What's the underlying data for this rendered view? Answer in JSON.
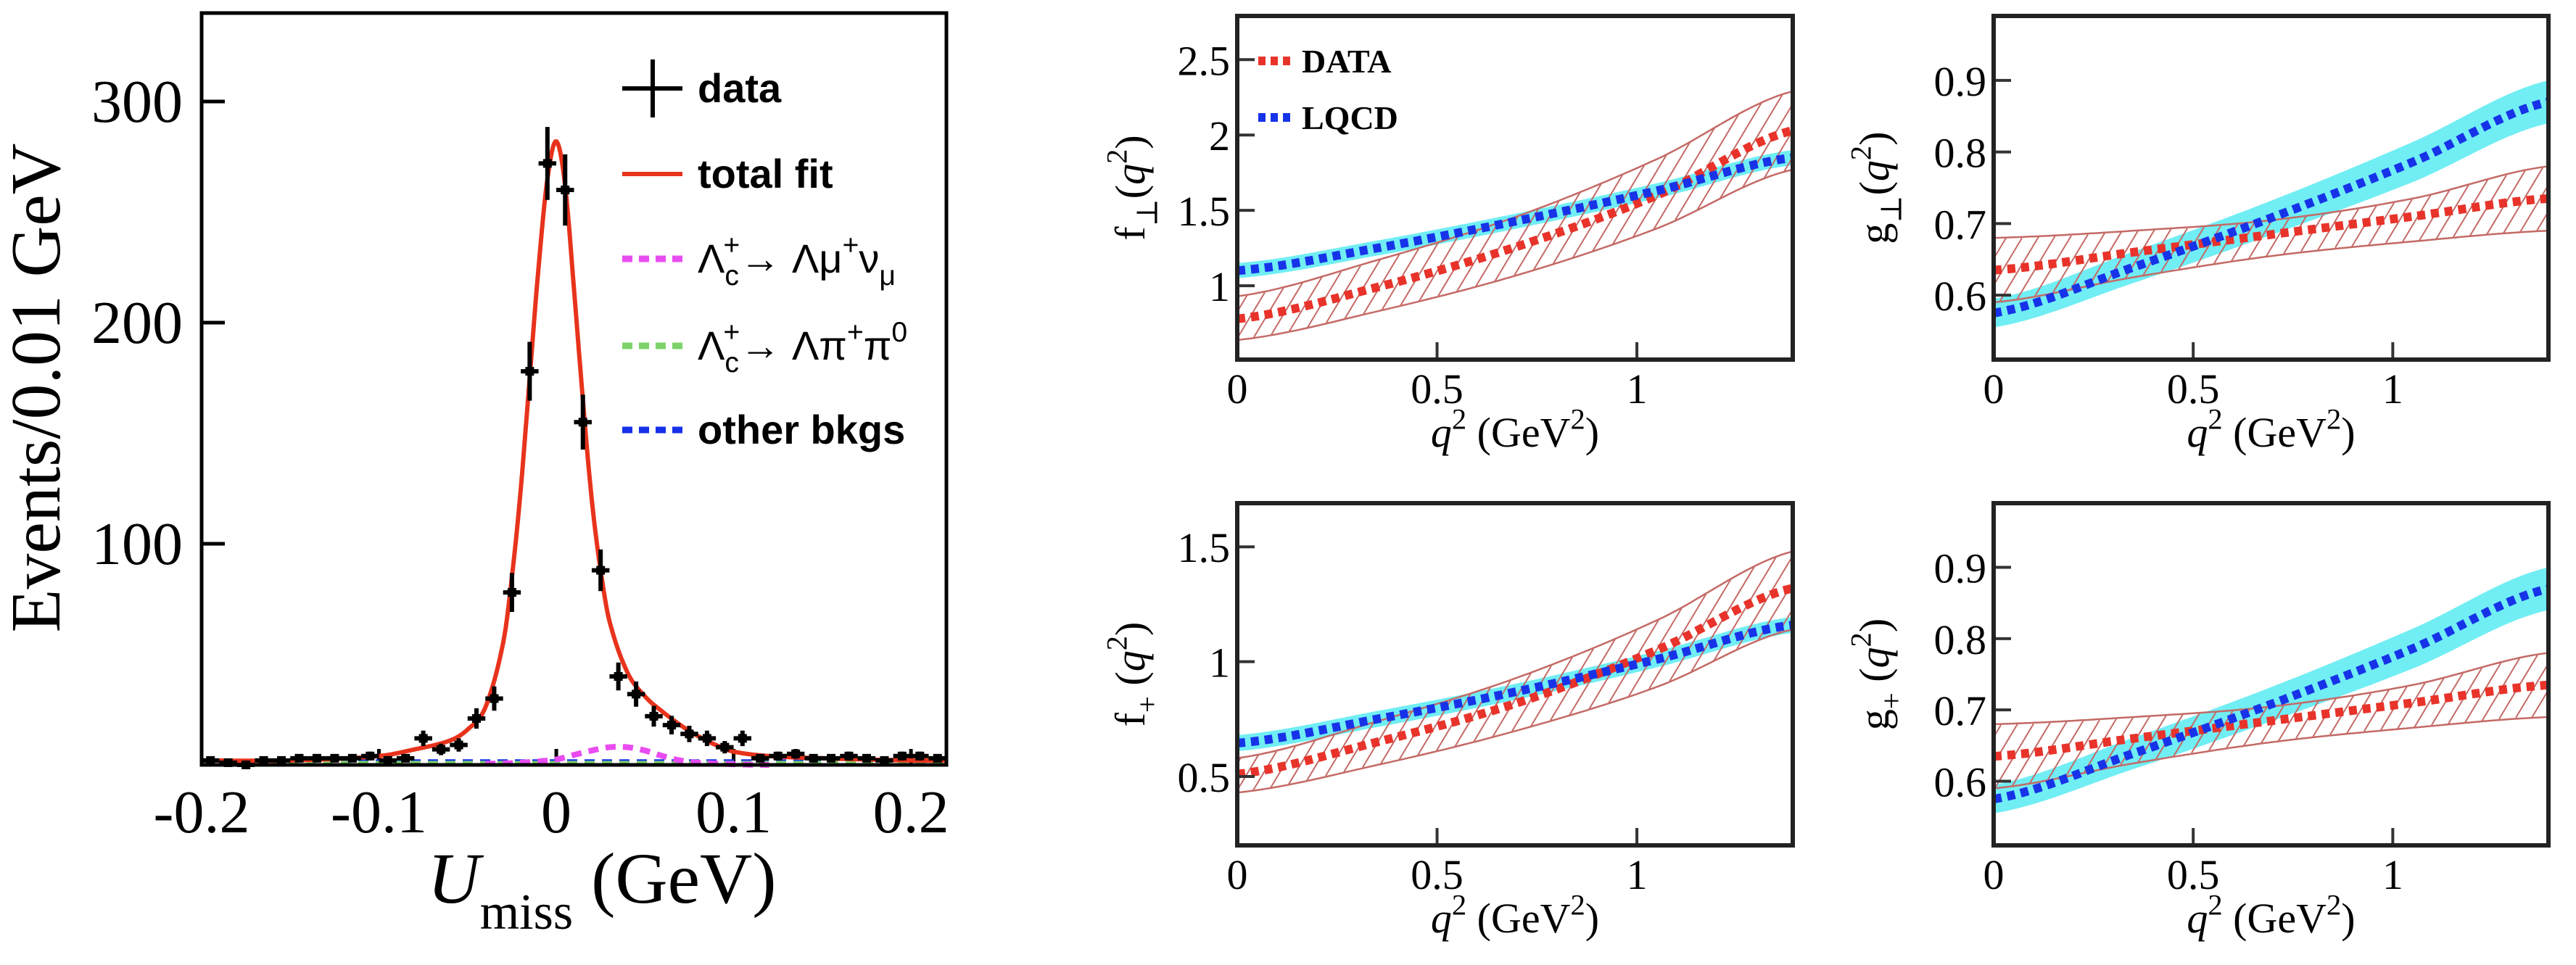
{
  "colors": {
    "data_points": "#000000",
    "total_fit": "#e8331c",
    "signal_mu": "#e84cf0",
    "bkg_pipi0": "#7cd36a",
    "other_bkgs": "#1530e8",
    "form_factor_data": "#e8332a",
    "form_factor_data_band": "#c46a66",
    "lqcd": "#1733e8",
    "lqcd_band": "#70eef4"
  },
  "chart_data": [
    {
      "type": "scatter+line",
      "xlabel": {
        "parts": [
          {
            "t": "U",
            "i": true
          },
          {
            "t": "miss",
            "s": "sub"
          },
          {
            "t": " (GeV)"
          }
        ]
      },
      "ylabel": {
        "parts": [
          {
            "t": "Events/0.01 GeV"
          }
        ]
      },
      "xlim": [
        -0.2,
        0.22
      ],
      "ylim": [
        0,
        340
      ],
      "xticks": [
        -0.2,
        -0.1,
        0,
        0.1,
        0.2
      ],
      "xtick_labels": [
        "-0.2",
        "-0.1",
        "0",
        "0.1",
        "0.2"
      ],
      "yticks": [
        100,
        200,
        300
      ],
      "ytick_labels": [
        "100",
        "200",
        "300"
      ],
      "grid": false,
      "legend": {
        "placement": "top-right",
        "entries": [
          {
            "symbol": "cross",
            "color": "#000000",
            "parts": [
              {
                "t": "data",
                "b": true
              }
            ]
          },
          {
            "symbol": "line",
            "color": "#e8331c",
            "parts": [
              {
                "t": "total fit",
                "b": true
              }
            ]
          },
          {
            "symbol": "dashed",
            "color": "#e84cf0",
            "parts": [
              {
                "t": "Λ"
              },
              {
                "t": "c",
                "s": "sub"
              },
              {
                "t": "+",
                "s": "sup",
                "stack": true
              },
              {
                "t": "→  Λμ"
              },
              {
                "t": "+",
                "s": "sup"
              },
              {
                "t": "ν"
              },
              {
                "t": "μ",
                "s": "sub"
              }
            ]
          },
          {
            "symbol": "dashed",
            "color": "#7cd36a",
            "parts": [
              {
                "t": "Λ"
              },
              {
                "t": "c",
                "s": "sub"
              },
              {
                "t": "+",
                "s": "sup",
                "stack": true
              },
              {
                "t": "→  Λπ"
              },
              {
                "t": "+",
                "s": "sup"
              },
              {
                "t": "π"
              },
              {
                "t": "0",
                "s": "sup"
              }
            ]
          },
          {
            "symbol": "dashed",
            "color": "#1530e8",
            "parts": [
              {
                "t": "other bkgs",
                "b": true
              }
            ]
          }
        ]
      },
      "series": [
        {
          "name": "data",
          "style": "points",
          "color": "#000000",
          "bin_width": 0.01,
          "x": [
            -0.195,
            -0.185,
            -0.175,
            -0.165,
            -0.155,
            -0.145,
            -0.135,
            -0.125,
            -0.115,
            -0.105,
            -0.095,
            -0.085,
            -0.075,
            -0.065,
            -0.055,
            -0.045,
            -0.035,
            -0.025,
            -0.015,
            -0.005,
            0.005,
            0.015,
            0.025,
            0.035,
            0.045,
            0.055,
            0.065,
            0.075,
            0.085,
            0.095,
            0.105,
            0.115,
            0.125,
            0.135,
            0.145,
            0.155,
            0.165,
            0.175,
            0.185,
            0.195,
            0.205,
            0.215
          ],
          "y": [
            2,
            1,
            0,
            2,
            2,
            3,
            3,
            3,
            3,
            4,
            2,
            3,
            12,
            7,
            9,
            21,
            30,
            78,
            178,
            272,
            260,
            155,
            88,
            40,
            32,
            22,
            18,
            14,
            12,
            8,
            12,
            3,
            4,
            5,
            3,
            3,
            4,
            3,
            2,
            4,
            4,
            3
          ],
          "yerr": [
            1.4,
            1,
            1,
            1.4,
            1.4,
            1.7,
            1.7,
            1.7,
            1.7,
            2,
            1.4,
            1.7,
            3.5,
            2.6,
            3,
            4.6,
            5.5,
            8.8,
            13.3,
            16.5,
            16.1,
            12.4,
            9.4,
            6.3,
            5.7,
            4.7,
            4.2,
            3.7,
            3.5,
            2.8,
            3.5,
            1.7,
            2,
            2.2,
            1.7,
            1.7,
            2,
            1.7,
            1.4,
            2,
            2,
            1.7
          ]
        },
        {
          "name": "total fit",
          "style": "solid",
          "color": "#e8331c",
          "x": [
            -0.2,
            -0.15,
            -0.1,
            -0.08,
            -0.06,
            -0.05,
            -0.04,
            -0.03,
            -0.025,
            -0.02,
            -0.015,
            -0.01,
            -0.005,
            0,
            0.005,
            0.01,
            0.015,
            0.02,
            0.025,
            0.03,
            0.04,
            0.05,
            0.06,
            0.07,
            0.08,
            0.09,
            0.1,
            0.12,
            0.15,
            0.2,
            0.22
          ],
          "y": [
            2,
            2,
            4,
            7,
            11,
            16,
            26,
            55,
            85,
            125,
            175,
            225,
            265,
            282,
            262,
            215,
            165,
            120,
            88,
            65,
            42,
            31,
            24,
            18,
            13,
            9,
            6,
            4,
            3,
            2,
            2
          ]
        },
        {
          "name": "Λc+→ Λμ+νμ",
          "style": "dashed",
          "color": "#e84cf0",
          "x": [
            -0.04,
            -0.02,
            0,
            0.01,
            0.02,
            0.03,
            0.04,
            0.05,
            0.06,
            0.07,
            0.08,
            0.1,
            0.12
          ],
          "y": [
            0.5,
            1,
            2.5,
            4.5,
            6.5,
            8,
            8,
            6.5,
            4,
            2,
            1,
            0.3,
            0
          ]
        },
        {
          "name": "Λc+→ Λπ+π0",
          "style": "dashed",
          "color": "#7cd36a",
          "x": [
            -0.2,
            0.22
          ],
          "y": [
            0.5,
            0.5
          ]
        },
        {
          "name": "other bkgs",
          "style": "dashed",
          "color": "#1530e8",
          "x": [
            -0.2,
            0.22
          ],
          "y": [
            1.2,
            1.2
          ]
        }
      ]
    },
    {
      "type": "line",
      "ylabel": {
        "parts": [
          {
            "t": "f"
          },
          {
            "t": "⊥",
            "s": "sub"
          },
          {
            "t": "("
          },
          {
            "t": "q",
            "i": true
          },
          {
            "t": "2",
            "s": "sup"
          },
          {
            "t": ")"
          }
        ]
      },
      "xlabel": {
        "parts": [
          {
            "t": "q",
            "i": true
          },
          {
            "t": "2",
            "s": "sup"
          },
          {
            "t": " (GeV"
          },
          {
            "t": "2",
            "s": "sup"
          },
          {
            "t": ")"
          }
        ]
      },
      "xlim": [
        0,
        1.39
      ],
      "ylim": [
        0.51,
        2.79
      ],
      "xticks": [
        0,
        0.5,
        1
      ],
      "xtick_labels": [
        "0",
        "0.5",
        "1"
      ],
      "yticks": [
        1,
        1.5,
        2,
        2.5
      ],
      "ytick_labels": [
        "1",
        "1.5",
        "2",
        "2.5"
      ],
      "grid": false,
      "legend": {
        "placement": "top-left",
        "entries": [
          {
            "symbol": "dotted",
            "color": "#e8332a",
            "label": "DATA"
          },
          {
            "symbol": "dotted",
            "color": "#1733e8",
            "label": "LQCD"
          }
        ]
      },
      "q2": [
        0,
        0.35,
        0.7,
        1.05,
        1.39
      ],
      "series": [
        {
          "name": "DATA",
          "central": [
            0.78,
            0.99,
            1.26,
            1.6,
            2.03
          ],
          "band_upper": [
            0.93,
            1.17,
            1.46,
            1.84,
            2.29
          ],
          "band_lower": [
            0.64,
            0.83,
            1.07,
            1.38,
            1.77
          ],
          "band_style": "hatched"
        },
        {
          "name": "LQCD",
          "central": [
            1.1,
            1.25,
            1.43,
            1.63,
            1.85
          ],
          "band_upper": [
            1.15,
            1.3,
            1.48,
            1.68,
            1.9
          ],
          "band_lower": [
            1.05,
            1.2,
            1.38,
            1.58,
            1.8
          ],
          "band_style": "filled"
        }
      ]
    },
    {
      "type": "line",
      "ylabel": {
        "parts": [
          {
            "t": "g"
          },
          {
            "t": "⊥",
            "s": "sub"
          },
          {
            "t": "("
          },
          {
            "t": "q",
            "i": true
          },
          {
            "t": "2",
            "s": "sup"
          },
          {
            "t": ")"
          }
        ]
      },
      "xlabel": {
        "parts": [
          {
            "t": "q",
            "i": true
          },
          {
            "t": "2",
            "s": "sup"
          },
          {
            "t": " (GeV"
          },
          {
            "t": "2",
            "s": "sup"
          },
          {
            "t": ")"
          }
        ]
      },
      "xlim": [
        0,
        1.39
      ],
      "ylim": [
        0.51,
        0.99
      ],
      "xticks": [
        0,
        0.5,
        1
      ],
      "xtick_labels": [
        "0",
        "0.5",
        "1"
      ],
      "yticks": [
        0.6,
        0.7,
        0.8,
        0.9
      ],
      "ytick_labels": [
        "0.6",
        "0.7",
        "0.8",
        "0.9"
      ],
      "grid": false,
      "q2": [
        0,
        0.35,
        0.7,
        1.05,
        1.39
      ],
      "series": [
        {
          "name": "DATA",
          "central": [
            0.635,
            0.66,
            0.685,
            0.71,
            0.735
          ],
          "band_upper": [
            0.68,
            0.69,
            0.705,
            0.735,
            0.78
          ],
          "band_lower": [
            0.59,
            0.625,
            0.655,
            0.675,
            0.69
          ],
          "band_style": "hatched"
        },
        {
          "name": "LQCD",
          "central": [
            0.575,
            0.639,
            0.709,
            0.786,
            0.87
          ],
          "band_upper": [
            0.595,
            0.661,
            0.733,
            0.814,
            0.9
          ],
          "band_lower": [
            0.555,
            0.617,
            0.685,
            0.758,
            0.84
          ],
          "band_style": "filled"
        }
      ]
    },
    {
      "type": "line",
      "ylabel": {
        "parts": [
          {
            "t": "f"
          },
          {
            "t": "+",
            "s": "sub"
          },
          {
            "t": " ("
          },
          {
            "t": "q",
            "i": true
          },
          {
            "t": "2",
            "s": "sup"
          },
          {
            "t": ")"
          }
        ]
      },
      "xlabel": {
        "parts": [
          {
            "t": "q",
            "i": true
          },
          {
            "t": "2",
            "s": "sup"
          },
          {
            "t": " (GeV"
          },
          {
            "t": "2",
            "s": "sup"
          },
          {
            "t": ")"
          }
        ]
      },
      "xlim": [
        0,
        1.39
      ],
      "ylim": [
        0.2,
        1.69
      ],
      "xticks": [
        0,
        0.5,
        1
      ],
      "xtick_labels": [
        "0",
        "0.5",
        "1"
      ],
      "yticks": [
        0.5,
        1,
        1.5
      ],
      "ytick_labels": [
        "0.5",
        "1",
        "1.5"
      ],
      "grid": false,
      "q2": [
        0,
        0.35,
        0.7,
        1.05,
        1.39
      ],
      "series": [
        {
          "name": "DATA",
          "central": [
            0.51,
            0.65,
            0.82,
            1.05,
            1.32
          ],
          "band_upper": [
            0.58,
            0.74,
            0.93,
            1.18,
            1.48
          ],
          "band_lower": [
            0.43,
            0.55,
            0.7,
            0.89,
            1.14
          ],
          "band_style": "hatched"
        },
        {
          "name": "LQCD",
          "central": [
            0.645,
            0.75,
            0.87,
            1.01,
            1.16
          ],
          "band_upper": [
            0.68,
            0.785,
            0.905,
            1.045,
            1.195
          ],
          "band_lower": [
            0.61,
            0.715,
            0.835,
            0.975,
            1.125
          ],
          "band_style": "filled"
        }
      ]
    },
    {
      "type": "line",
      "ylabel": {
        "parts": [
          {
            "t": "g"
          },
          {
            "t": "+",
            "s": "sub"
          },
          {
            "t": " ("
          },
          {
            "t": "q",
            "i": true
          },
          {
            "t": "2",
            "s": "sup"
          },
          {
            "t": ")"
          }
        ]
      },
      "xlabel": {
        "parts": [
          {
            "t": "q",
            "i": true
          },
          {
            "t": "2",
            "s": "sup"
          },
          {
            "t": " (GeV"
          },
          {
            "t": "2",
            "s": "sup"
          },
          {
            "t": ")"
          }
        ]
      },
      "xlim": [
        0,
        1.39
      ],
      "ylim": [
        0.51,
        0.99
      ],
      "xticks": [
        0,
        0.5,
        1
      ],
      "xtick_labels": [
        "0",
        "0.5",
        "1"
      ],
      "yticks": [
        0.6,
        0.7,
        0.8,
        0.9
      ],
      "ytick_labels": [
        "0.6",
        "0.7",
        "0.8",
        "0.9"
      ],
      "grid": false,
      "q2": [
        0,
        0.35,
        0.7,
        1.05,
        1.39
      ],
      "series": [
        {
          "name": "DATA",
          "central": [
            0.635,
            0.66,
            0.685,
            0.71,
            0.735
          ],
          "band_upper": [
            0.68,
            0.69,
            0.705,
            0.735,
            0.78
          ],
          "band_lower": [
            0.59,
            0.625,
            0.655,
            0.675,
            0.69
          ],
          "band_style": "hatched"
        },
        {
          "name": "LQCD",
          "central": [
            0.575,
            0.639,
            0.709,
            0.786,
            0.87
          ],
          "band_upper": [
            0.595,
            0.661,
            0.733,
            0.814,
            0.9
          ],
          "band_lower": [
            0.555,
            0.617,
            0.685,
            0.758,
            0.84
          ],
          "band_style": "filled"
        }
      ]
    }
  ]
}
